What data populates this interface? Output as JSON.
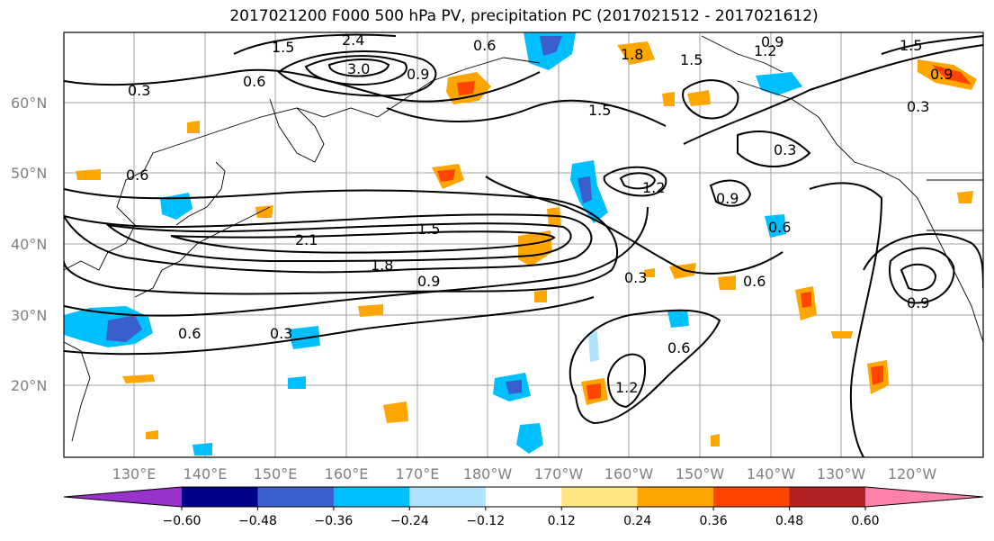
{
  "title": "2017021200 F000 500 hPa PV, precipitation PC (2017021512 - 2017021612)",
  "map": {
    "latitude_labels": [
      "60°N",
      "50°N",
      "40°N",
      "30°N",
      "20°N"
    ],
    "longitude_labels": [
      "130°E",
      "140°E",
      "150°E",
      "160°E",
      "170°E",
      "180°W",
      "170°W",
      "160°W",
      "150°W",
      "140°W",
      "130°W",
      "120°W"
    ],
    "grid_color": "#a0a0a0",
    "contour_labels": [
      "0.3",
      "0.6",
      "0.9",
      "1.2",
      "1.5",
      "1.8",
      "2.1",
      "2.4",
      "3.0"
    ]
  },
  "colorbar": {
    "ticks": [
      "−0.60",
      "−0.48",
      "−0.36",
      "−0.24",
      "−0.12",
      "0.12",
      "0.24",
      "0.36",
      "0.48",
      "0.60"
    ],
    "colors": [
      "#9932cc",
      "#00008b",
      "#3a5fcd",
      "#00bfff",
      "#b0e2ff",
      "#ffffff",
      "#ffe680",
      "#ffa500",
      "#ff4500",
      "#b22222",
      "#ff82ab"
    ]
  }
}
